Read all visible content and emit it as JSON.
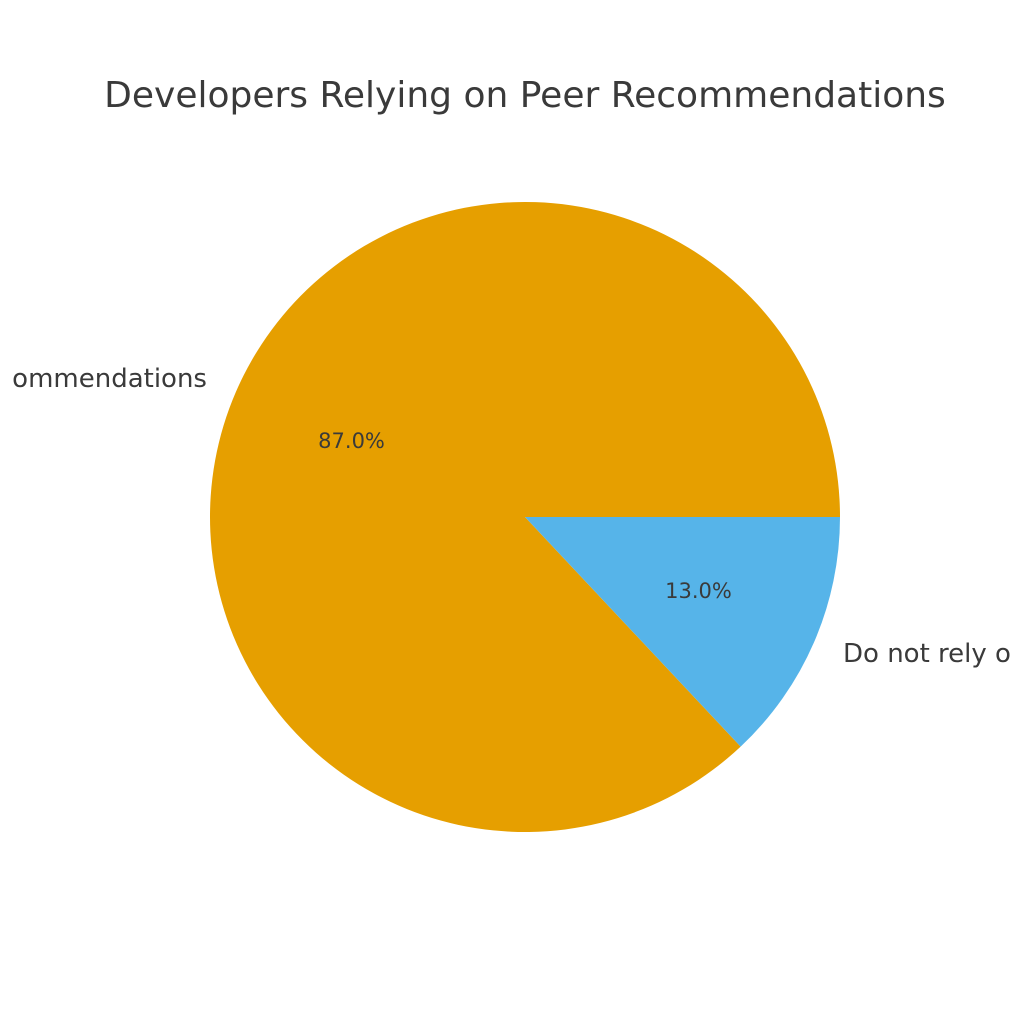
{
  "chart_data": {
    "type": "pie",
    "title": "Developers Relying on Peer Recommendations",
    "categories": [
      "ommendations",
      "Do not rely o"
    ],
    "values": [
      87,
      13
    ],
    "value_labels": [
      "87.0%",
      "13.0%"
    ],
    "colors": [
      "#e69f00",
      "#56b4e9"
    ]
  }
}
